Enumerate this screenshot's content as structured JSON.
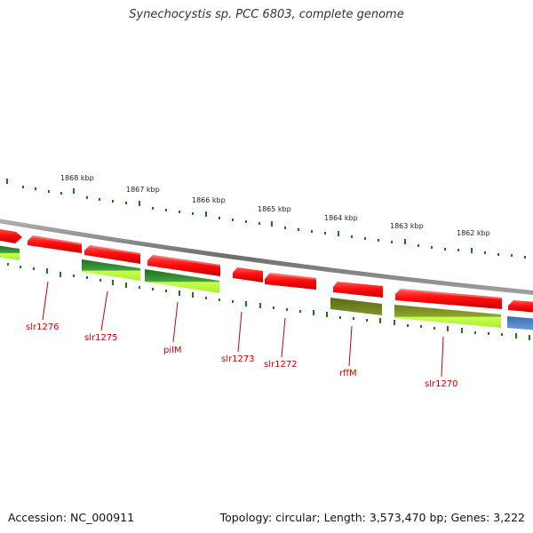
{
  "title": "Synechocystis sp. PCC 6803, complete genome",
  "footer": {
    "accession": "Accession: NC_000911",
    "topology": "Topology: circular; Length: 3,573,470 bp; Genes: 3,222"
  },
  "scale_labels": [
    "1868 kbp",
    "1867 kbp",
    "1866 kbp",
    "1865 kbp",
    "1864 kbp",
    "1863 kbp",
    "1862 kbp"
  ],
  "gene_labels": [
    "slr1276",
    "slr1275",
    "pilM",
    "slr1273",
    "slr1272",
    "rffM",
    "slr1270"
  ],
  "colors": {
    "gene_red": "#ff1a1a",
    "cds_green_dark": "#2e8b2e",
    "cds_green_light": "#b4ff3c",
    "cds_olive": "#6b7f1f",
    "cds_blue": "#4a7fbf",
    "backbone": "#888888",
    "tick_green": "#1a7a1a",
    "label_red": "#cc0000"
  }
}
